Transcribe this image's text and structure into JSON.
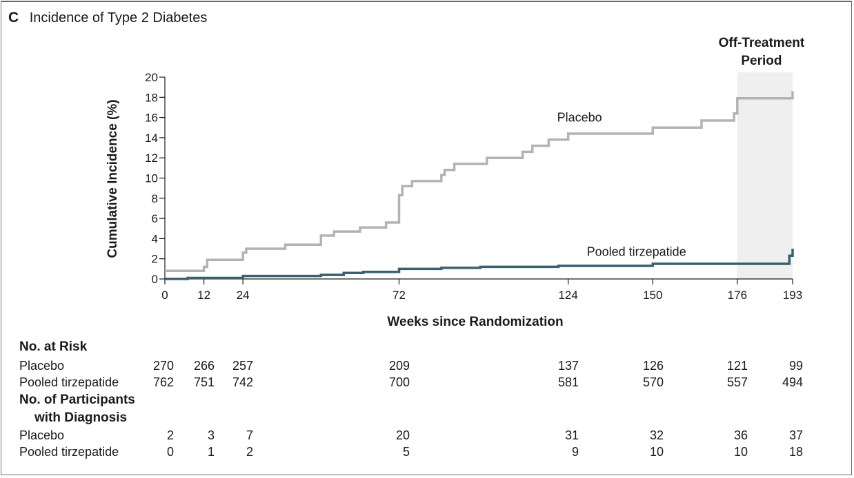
{
  "panel": {
    "letter": "C",
    "title": "Incidence of Type 2 Diabetes"
  },
  "chart_data": {
    "type": "line",
    "step": true,
    "xlabel": "Weeks since Randomization",
    "ylabel": "Cumulative Incidence (%)",
    "xlim": [
      0,
      193
    ],
    "ylim": [
      0,
      20
    ],
    "xticks": [
      0,
      12,
      24,
      72,
      124,
      150,
      176,
      193
    ],
    "yticks": [
      0,
      2,
      4,
      6,
      8,
      10,
      12,
      14,
      16,
      18,
      20
    ],
    "shaded_region": {
      "label_line1": "Off-Treatment",
      "label_line2": "Period",
      "x_range": [
        176,
        193
      ]
    },
    "series": [
      {
        "name": "Placebo",
        "color": "#b3b3b3",
        "points": [
          [
            0,
            0.8
          ],
          [
            12,
            0.8
          ],
          [
            12,
            1.2
          ],
          [
            13,
            1.2
          ],
          [
            13,
            1.9
          ],
          [
            24,
            1.9
          ],
          [
            24,
            2.6
          ],
          [
            25,
            2.6
          ],
          [
            25,
            3.0
          ],
          [
            37,
            3.0
          ],
          [
            37,
            3.4
          ],
          [
            48,
            3.4
          ],
          [
            48,
            4.3
          ],
          [
            52,
            4.3
          ],
          [
            52,
            4.7
          ],
          [
            60,
            4.7
          ],
          [
            60,
            5.1
          ],
          [
            68,
            5.1
          ],
          [
            68,
            5.6
          ],
          [
            72,
            5.6
          ],
          [
            72,
            8.3
          ],
          [
            73,
            8.3
          ],
          [
            73,
            9.2
          ],
          [
            76,
            9.2
          ],
          [
            76,
            9.7
          ],
          [
            85,
            9.7
          ],
          [
            85,
            10.3
          ],
          [
            86,
            10.3
          ],
          [
            86,
            10.8
          ],
          [
            89,
            10.8
          ],
          [
            89,
            11.4
          ],
          [
            99,
            11.4
          ],
          [
            99,
            12.0
          ],
          [
            110,
            12.0
          ],
          [
            110,
            12.6
          ],
          [
            113,
            12.6
          ],
          [
            113,
            13.2
          ],
          [
            118,
            13.2
          ],
          [
            118,
            13.8
          ],
          [
            124,
            13.8
          ],
          [
            124,
            14.4
          ],
          [
            150,
            14.4
          ],
          [
            150,
            15.0
          ],
          [
            165,
            15.0
          ],
          [
            165,
            15.7
          ],
          [
            175,
            15.7
          ],
          [
            175,
            16.4
          ],
          [
            176,
            16.4
          ],
          [
            176,
            17.9
          ],
          [
            193,
            17.9
          ],
          [
            193,
            18.6
          ]
        ]
      },
      {
        "name": "Pooled tirzepatide",
        "color": "#3b5f70",
        "points": [
          [
            0,
            0
          ],
          [
            7,
            0
          ],
          [
            7,
            0.1
          ],
          [
            24,
            0.1
          ],
          [
            24,
            0.3
          ],
          [
            48,
            0.3
          ],
          [
            48,
            0.4
          ],
          [
            55,
            0.4
          ],
          [
            55,
            0.6
          ],
          [
            61,
            0.6
          ],
          [
            61,
            0.7
          ],
          [
            72,
            0.7
          ],
          [
            72,
            1.0
          ],
          [
            85,
            1.0
          ],
          [
            85,
            1.1
          ],
          [
            97,
            1.1
          ],
          [
            97,
            1.2
          ],
          [
            121,
            1.2
          ],
          [
            121,
            1.3
          ],
          [
            150,
            1.3
          ],
          [
            150,
            1.5
          ],
          [
            192,
            1.5
          ],
          [
            192,
            2.3
          ],
          [
            193,
            2.3
          ],
          [
            193,
            3.0
          ]
        ]
      }
    ],
    "at_risk": {
      "heading": "No. at Risk",
      "rows": [
        {
          "label": "Placebo",
          "values": [
            "270",
            "266",
            "257",
            "209",
            "137",
            "126",
            "121",
            "99"
          ]
        },
        {
          "label": "Pooled tirzepatide",
          "values": [
            "762",
            "751",
            "742",
            "700",
            "581",
            "570",
            "557",
            "494"
          ]
        }
      ]
    },
    "diagnosis": {
      "heading_line1": "No. of Participants",
      "heading_line2": "with Diagnosis",
      "rows": [
        {
          "label": "Placebo",
          "values": [
            "2",
            "3",
            "7",
            "20",
            "31",
            "32",
            "36",
            "37"
          ]
        },
        {
          "label": "Pooled tirzepatide",
          "values": [
            "0",
            "1",
            "2",
            "5",
            "9",
            "10",
            "10",
            "18"
          ]
        }
      ]
    }
  }
}
